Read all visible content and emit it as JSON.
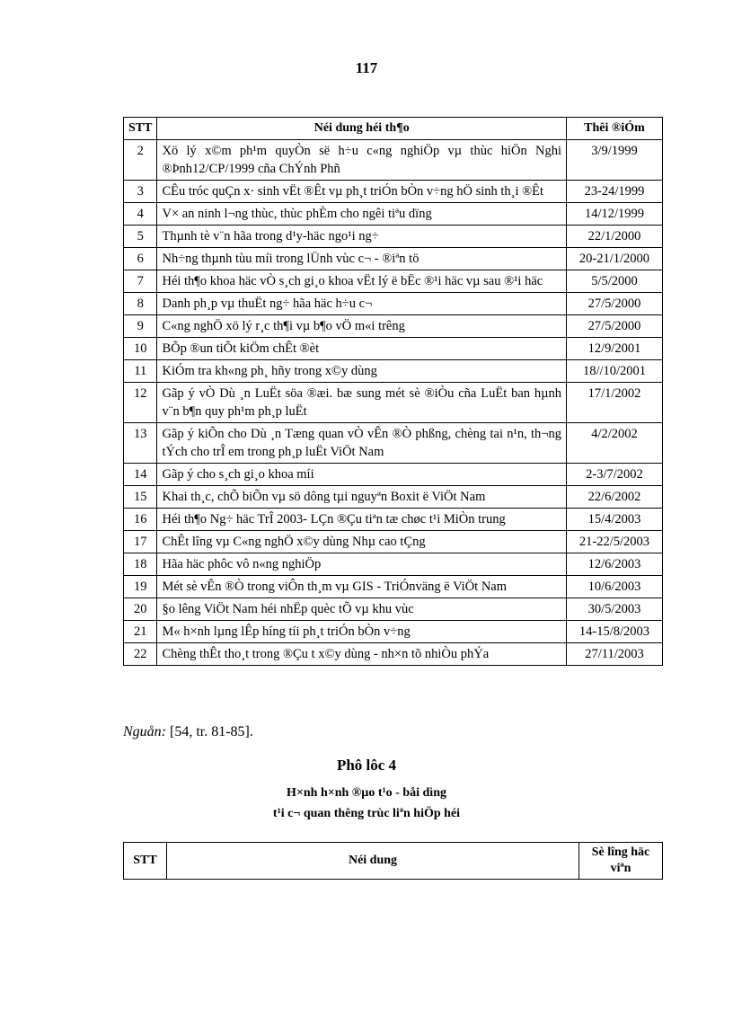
{
  "page_number": "117",
  "table1": {
    "headers": [
      "STT",
      "Néi dung héi th¶o",
      "Thêi ®iÓm"
    ],
    "rows": [
      {
        "stt": "2",
        "content": "Xö lý x©m ph¹m quyÒn së h÷u c«ng nghiÖp  vµ thùc hiÖn Nghi ®Þnh12/CP/1999 cña ChÝnh Phñ",
        "date": "3/9/1999"
      },
      {
        "stt": "3",
        "content": "CÊu tróc quÇn x· sinh vËt ®Êt vµ ph¸t triÓn bÒn v÷ng hÖ sinh th¸i ®Êt",
        "date": "23-24/1999"
      },
      {
        "stt": "4",
        "content": "V× an ninh l­¬ng  thùc, thùc phÈm cho ng­êi  tiªu dïng",
        "date": "14/12/1999"
      },
      {
        "stt": "5",
        "content": "Thµnh  tè v¨n hãa trong d¹y-häc ngo¹i ng÷",
        "date": "22/1/2000"
      },
      {
        "stt": "6",
        "content": "Nh÷ng thµnh  tùu míi trong lÜnh vùc c¬ - ®iªn tö",
        "date": "20-21/1/2000"
      },
      {
        "stt": "7",
        "content": "Héi th¶o khoa häc vÒ s¸ch gi¸o khoa vËt lý ë bËc ®¹i häc vµ sau ®¹i häc",
        "date": "5/5/2000"
      },
      {
        "stt": "8",
        "content": "Danh ph¸p  vµ thuËt ng÷ hãa häc h÷u c¬",
        "date": "27/5/2000"
      },
      {
        "stt": "9",
        "content": "C«ng nghÖ  xö lý r¸c th¶i vµ b¶o vÖ m«i  tr­êng",
        "date": "27/5/2000"
      },
      {
        "stt": "10",
        "content": "BÕp ®un tiÕt kiÖm chÊt  ®èt",
        "date": "12/9/2001"
      },
      {
        "stt": "11",
        "content": "KiÓm tra kh«ng ph¸ hñy trong x©y dùng",
        "date": "18//10/2001"
      },
      {
        "stt": "12",
        "content": "Gãp ý vÒ Dù ¸n LuËt söa ®æi. bæ sung mét sè ®iÒu cña LuËt ban hµnh  v¨n b¶n quy ph¹m ph¸p luËt",
        "date": "17/1/2002"
      },
      {
        "stt": "13",
        "content": "Gãp ý kiÕn  cho Dù ¸n Tæng quan vÒ vÊn ®Ò phßng,  chèng tai n¹n, th­¬ng  tÝch cho trÎ em trong ph¸p luËt ViÖt Nam",
        "date": "4/2/2002"
      },
      {
        "stt": "14",
        "content": "Gãp ý cho s¸ch gi¸o  khoa míi",
        "date": "2-3/7/2002"
      },
      {
        "stt": "15",
        "content": "Khai th¸c,  chÕ biÕn vµ sö dông tµi  nguyªn  Boxit  ë ViÖt Nam",
        "date": "22/6/2002"
      },
      {
        "stt": "16",
        "content": "Héi th¶o Ng÷ häc TrÎ 2003- LÇn ®Çu tiªn tæ chøc t¹i MiÒn trung",
        "date": "15/4/2003"
      },
      {
        "stt": "17",
        "content": "ChÊt l­îng   vµ C«ng nghÖ  x©y dùng Nhµ cao tÇng",
        "date": "21-22/5/2003"
      },
      {
        "stt": "18",
        "content": "Hãa häc phôc vô n«ng  nghiÖp",
        "date": "12/6/2003"
      },
      {
        "stt": "19",
        "content": "Mét sè vÊn ®Ò trong viÔn th¸m  vµ GIS - TriÓnväng  ë ViÖt Nam",
        "date": "10/6/2003"
      },
      {
        "stt": "20",
        "content": "§o l­êng  ViÖt Nam héi nhËp  quèc tÕ vµ khu vùc",
        "date": "30/5/2003"
      },
      {
        "stt": "21",
        "content": "M« h×nh lµng lÊp h­íng  tíi  ph¸t triÓn bÒn v÷ng",
        "date": "14-15/8/2003"
      },
      {
        "stt": "22",
        "content": "Chèng thÊt tho¸t trong ®Çu t­  x©y dùng - nh×n tõ nhiÒu phÝa",
        "date": "27/11/2003"
      }
    ]
  },
  "source": {
    "label": "Nguån:",
    "text": " [54, tr. 81-85]."
  },
  "appendix": {
    "title": "Phô lôc 4",
    "subtitle_line1": "H×nh h×nh ®µo t¹o - båi d­ìng",
    "subtitle_line2": "t¹i c¬ quan  th­êng  trùc liªn hiÖp héi"
  },
  "table2": {
    "headers": [
      "STT",
      "Néi dung",
      "Sè l­îng  häc viªn"
    ]
  }
}
